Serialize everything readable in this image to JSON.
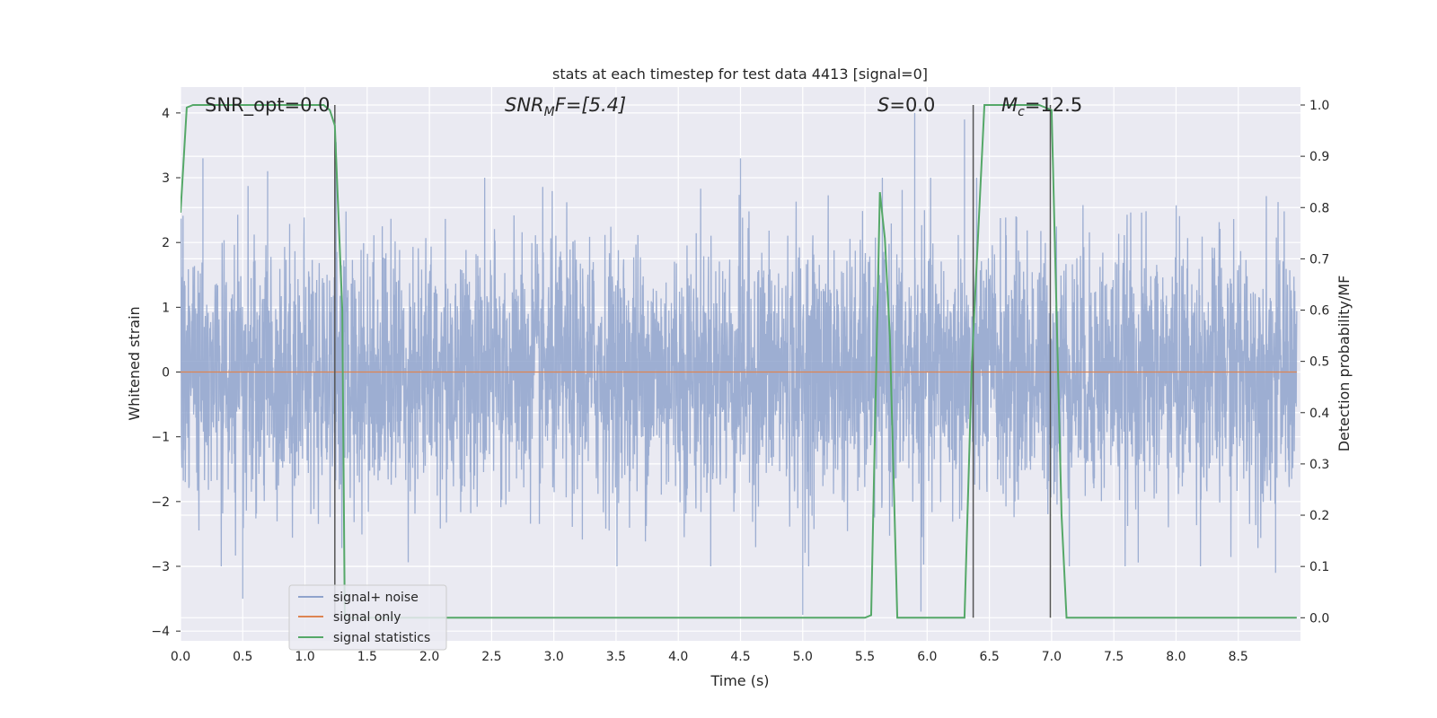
{
  "chart_data": {
    "type": "line",
    "title": "stats at each timestep for test data 4413 [signal=0]",
    "xlabel": "Time (s)",
    "ylabel": "Whitened strain",
    "y2label": "Detection probability/MF",
    "xlim": [
      0.0,
      9.0
    ],
    "ylim": [
      -4.15,
      4.4
    ],
    "y2lim": [
      -0.045,
      1.035
    ],
    "xticks": [
      "0.0",
      "0.5",
      "1.0",
      "1.5",
      "2.0",
      "2.5",
      "3.0",
      "3.5",
      "4.0",
      "4.5",
      "5.0",
      "5.5",
      "6.0",
      "6.5",
      "7.0",
      "7.5",
      "8.0",
      "8.5"
    ],
    "yticks": [
      "4",
      "3",
      "2",
      "1",
      "0",
      "−1",
      "−2",
      "−3",
      "−4"
    ],
    "y2ticks": [
      "1.0",
      "0.9",
      "0.8",
      "0.7",
      "0.6",
      "0.5",
      "0.4",
      "0.3",
      "0.2",
      "0.1",
      "0.0"
    ],
    "grid": true,
    "legend_position": "lower-left",
    "annotations": {
      "snr_opt": "SNR_opt=0.0",
      "snr_mf_main": "SNR",
      "snr_mf_sub": "M",
      "snr_mf_rest": "F=[5.4]",
      "s_main": "S",
      "s_rest": "=0.0",
      "mc_main": "M",
      "mc_sub": "c",
      "mc_rest": "=12.5"
    },
    "vertical_lines_x": [
      1.24,
      6.37,
      6.99
    ],
    "series": [
      {
        "name": "signal+ noise",
        "color": "#8fa3cc",
        "description_values": "whitened Gaussian noise, approx mean 0, std 1, extremes about -3.8 to 4.0",
        "peaks": [
          [
            0.18,
            3.3
          ],
          [
            0.5,
            -3.5
          ],
          [
            0.7,
            3.1
          ],
          [
            1.25,
            3.55
          ],
          [
            4.5,
            3.3
          ],
          [
            5.0,
            -3.75
          ],
          [
            5.9,
            4.0
          ],
          [
            5.95,
            -3.7
          ],
          [
            6.3,
            3.9
          ],
          [
            8.8,
            -3.1
          ]
        ]
      },
      {
        "name": "signal only",
        "color": "#dd8452",
        "values_constant": 0.0
      },
      {
        "name": "signal statistics",
        "color": "#55a868",
        "x": [
          0.0,
          0.05,
          0.1,
          1.15,
          1.2,
          1.24,
          1.3,
          1.32,
          5.5,
          5.55,
          5.62,
          5.66,
          5.7,
          5.76,
          6.0,
          6.3,
          6.36,
          6.46,
          6.9,
          7.0,
          7.08,
          7.12,
          8.97
        ],
        "values": [
          0.79,
          0.995,
          1.0,
          1.0,
          0.99,
          0.96,
          0.6,
          0.0,
          0.0,
          0.005,
          0.83,
          0.74,
          0.55,
          0.0,
          0.0,
          0.0,
          0.5,
          1.0,
          1.0,
          0.99,
          0.2,
          0.0,
          0.0
        ]
      }
    ]
  }
}
